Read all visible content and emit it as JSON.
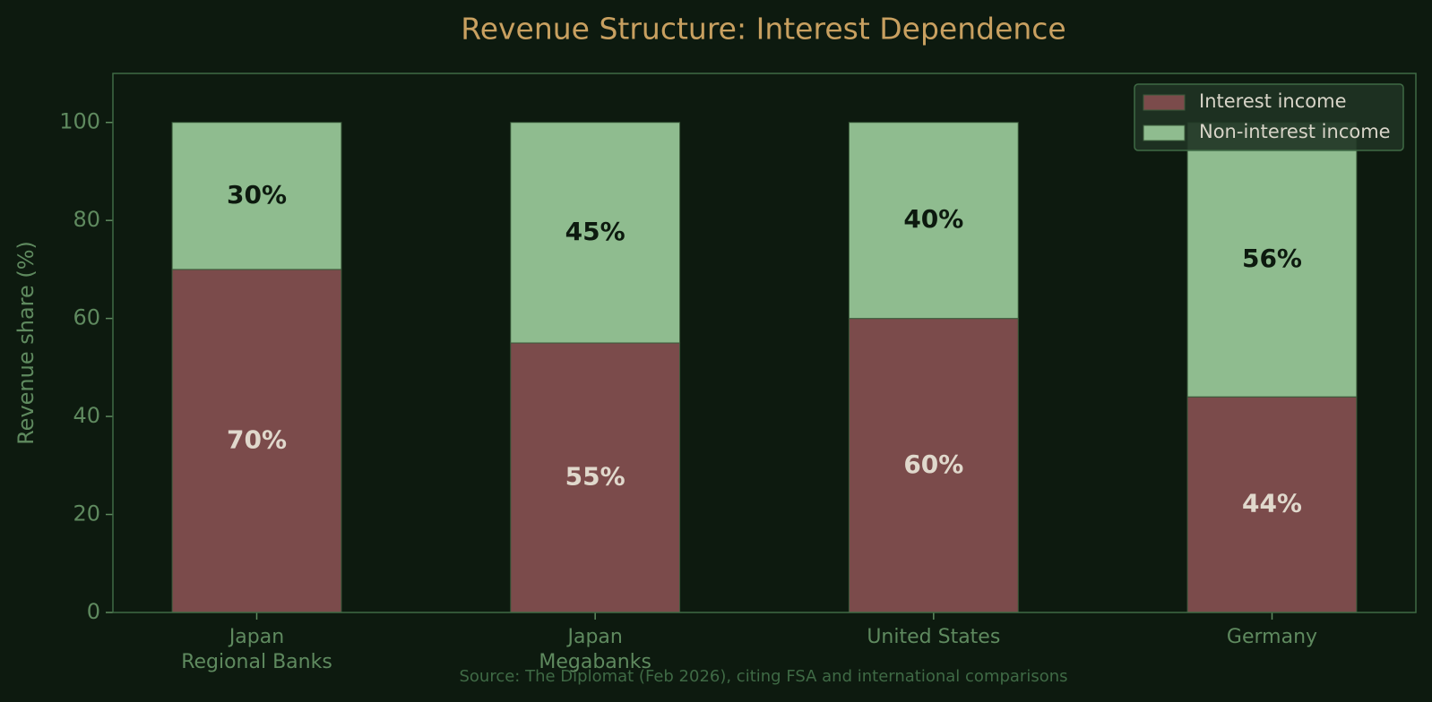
{
  "chart_data": {
    "type": "stacked-bar",
    "title": "Revenue Structure: Interest Dependence",
    "ylabel": "Revenue share (%)",
    "source": "Source: The Diplomat (Feb 2026), citing FSA and international comparisons",
    "categories": [
      "Japan\nRegional Banks",
      "Japan\nMegabanks",
      "United States",
      "Germany"
    ],
    "series": [
      {
        "name": "Interest income",
        "color": "#7b4b4b",
        "values": [
          70,
          55,
          60,
          44
        ],
        "value_labels": [
          "70%",
          "55%",
          "60%",
          "44%"
        ]
      },
      {
        "name": "Non-interest income",
        "color": "#8fbc8f",
        "values": [
          30,
          45,
          40,
          56
        ],
        "value_labels": [
          "30%",
          "45%",
          "40%",
          "56%"
        ]
      }
    ],
    "ylim": [
      0,
      110
    ],
    "yticks": [
      0,
      20,
      40,
      60,
      80,
      100
    ],
    "legend": "upper right"
  }
}
